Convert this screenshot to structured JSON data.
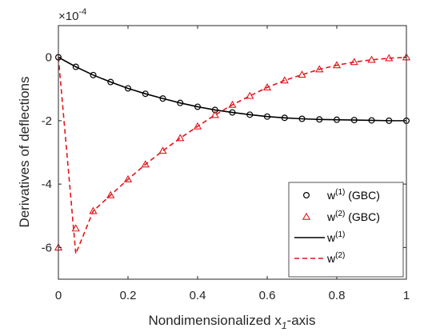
{
  "chart_data": {
    "type": "line",
    "title": "",
    "xlabel": "Nondimensionalized x",
    "xlabel_subscript": "1",
    "xlabel_suffix": "-axis",
    "ylabel": "Derivatives of deflections",
    "y_multiplier_base": "×10",
    "y_multiplier_exp": "-4",
    "xlim": [
      0,
      1
    ],
    "ylim": [
      -7,
      1
    ],
    "xticks": [
      0,
      0.2,
      0.4,
      0.6,
      0.8,
      1
    ],
    "xtick_labels": [
      "0",
      "0.2",
      "0.4",
      "0.6",
      "0.8",
      "1"
    ],
    "yticks": [
      0,
      -2,
      -4,
      -6
    ],
    "ytick_labels": [
      "0",
      "-2",
      "-4",
      "-6"
    ],
    "grid": false,
    "legend_position": "bottom-right",
    "series": [
      {
        "name": "w(1) (GBC)",
        "name_base": "w",
        "name_sup": "(1)",
        "name_suffix": " (GBC)",
        "style": "markers",
        "marker": "circle",
        "color": "#000000",
        "x": [
          0,
          0.05,
          0.1,
          0.15,
          0.2,
          0.25,
          0.3,
          0.35,
          0.4,
          0.45,
          0.5,
          0.55,
          0.6,
          0.65,
          0.7,
          0.75,
          0.8,
          0.85,
          0.9,
          0.95,
          1
        ],
        "y": [
          0,
          -0.3,
          -0.56,
          -0.78,
          -0.98,
          -1.15,
          -1.3,
          -1.44,
          -1.56,
          -1.66,
          -1.74,
          -1.81,
          -1.87,
          -1.91,
          -1.94,
          -1.96,
          -1.97,
          -1.98,
          -1.99,
          -2.0,
          -2.0
        ]
      },
      {
        "name": "w(2) (GBC)",
        "name_base": "w",
        "name_sup": "(2)",
        "name_suffix": " (GBC)",
        "style": "markers",
        "marker": "triangle",
        "color": "#e0161b",
        "x": [
          0,
          0.05,
          0.1,
          0.15,
          0.2,
          0.25,
          0.3,
          0.35,
          0.4,
          0.45,
          0.5,
          0.55,
          0.6,
          0.65,
          0.7,
          0.75,
          0.8,
          0.85,
          0.9,
          0.95,
          1
        ],
        "y": [
          -6.0,
          -5.4,
          -4.85,
          -4.35,
          -3.85,
          -3.38,
          -2.95,
          -2.55,
          -2.18,
          -1.82,
          -1.5,
          -1.22,
          -0.95,
          -0.73,
          -0.55,
          -0.38,
          -0.25,
          -0.15,
          -0.08,
          -0.03,
          0
        ]
      },
      {
        "name": "w(1)",
        "name_base": "w",
        "name_sup": "(1)",
        "name_suffix": "",
        "style": "solid",
        "color": "#000000",
        "x": [
          0,
          0.05,
          0.1,
          0.15,
          0.2,
          0.25,
          0.3,
          0.35,
          0.4,
          0.45,
          0.5,
          0.55,
          0.6,
          0.65,
          0.7,
          0.75,
          0.8,
          0.85,
          0.9,
          0.95,
          1
        ],
        "y": [
          0,
          -0.3,
          -0.56,
          -0.78,
          -0.98,
          -1.15,
          -1.3,
          -1.44,
          -1.56,
          -1.66,
          -1.74,
          -1.81,
          -1.87,
          -1.91,
          -1.94,
          -1.96,
          -1.97,
          -1.98,
          -1.99,
          -2.0,
          -2.0
        ]
      },
      {
        "name": "w(2)",
        "name_base": "w",
        "name_sup": "(2)",
        "name_suffix": "",
        "style": "dashed",
        "color": "#e0161b",
        "x": [
          0,
          0.05,
          0.1,
          0.15,
          0.2,
          0.25,
          0.3,
          0.35,
          0.4,
          0.45,
          0.5,
          0.55,
          0.6,
          0.65,
          0.7,
          0.75,
          0.8,
          0.85,
          0.9,
          0.95,
          1
        ],
        "y": [
          0,
          -6.2,
          -4.85,
          -4.35,
          -3.85,
          -3.38,
          -2.95,
          -2.55,
          -2.18,
          -1.82,
          -1.5,
          -1.22,
          -0.95,
          -0.73,
          -0.55,
          -0.38,
          -0.25,
          -0.15,
          -0.08,
          -0.03,
          0
        ]
      }
    ]
  }
}
